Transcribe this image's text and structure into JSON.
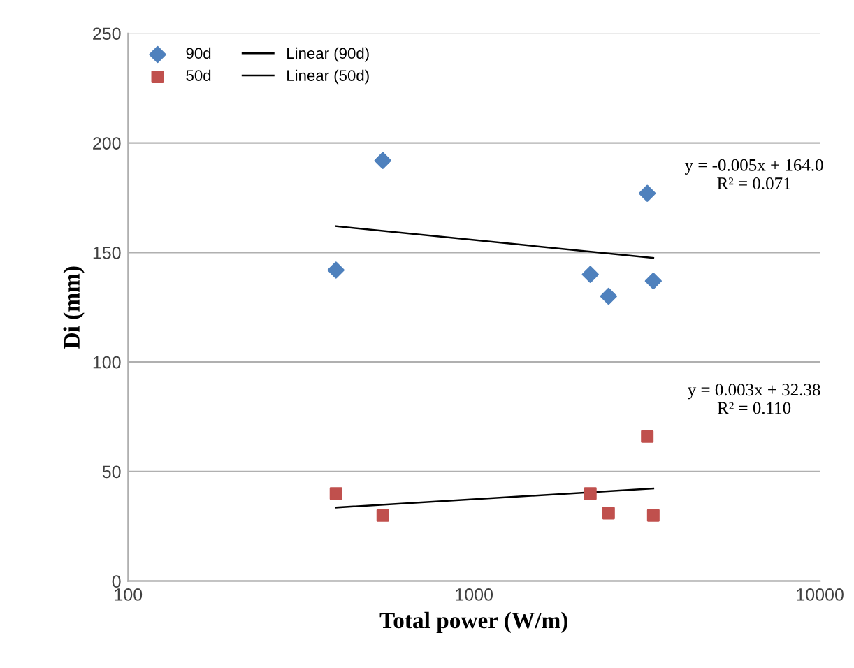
{
  "chart_data": {
    "type": "scatter",
    "xlabel": "Total power (W/m)",
    "ylabel": "Di (mm)",
    "log": "x",
    "xlim": [
      100,
      10000
    ],
    "xticks": [
      100,
      1000,
      10000
    ],
    "ylim": [
      0,
      250
    ],
    "yticks": [
      0,
      50,
      100,
      150,
      200,
      250
    ],
    "grid": "y",
    "legend": "top left",
    "series": [
      {
        "name": "90d",
        "marker": "diamond",
        "color": "#4f81bd",
        "x": [
          399,
          545,
          2170,
          2450,
          3170,
          3300
        ],
        "values": [
          142,
          192,
          140,
          130,
          177,
          137
        ]
      },
      {
        "name": "50d",
        "marker": "square",
        "color": "#c0504d",
        "x": [
          399,
          545,
          2170,
          2450,
          3170,
          3300
        ],
        "values": [
          40,
          30,
          40,
          31,
          66,
          30
        ]
      },
      {
        "name": "Linear (90d)",
        "type": "line",
        "color": "#000000",
        "x": [
          399,
          3300
        ],
        "values": [
          162,
          147.5
        ]
      },
      {
        "name": "Linear (50d)",
        "type": "line",
        "color": "#000000",
        "x": [
          399,
          3300
        ],
        "values": [
          33.6,
          42.3
        ]
      }
    ],
    "annotations": [
      "y = -0.005x + 164.0\nR² = 0.071",
      "y = 0.003x + 32.38\nR² = 0.110"
    ]
  }
}
